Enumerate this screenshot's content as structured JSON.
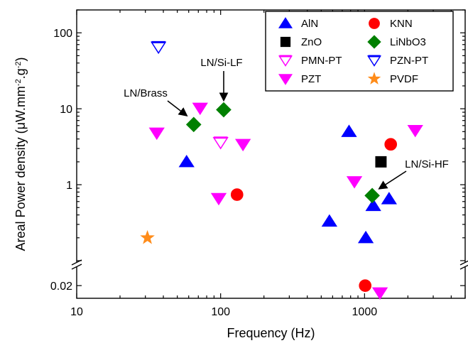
{
  "chart_data": {
    "type": "scatter",
    "xlabel": "Frequency (Hz)",
    "ylabel_prefix": "Areal Power density (μW.mm",
    "ylabel_sup1": "-2",
    "ylabel_mid": ".g",
    "ylabel_sup2": "-2",
    "ylabel_suffix": ")",
    "x_scale": "log",
    "y_scale": "log",
    "xlim": [
      10,
      5000
    ],
    "ylim": [
      0.02,
      200
    ],
    "y_axis_break": "between 0.02 and 0.1",
    "x_ticks": [
      10,
      100,
      1000
    ],
    "x_tick_labels": [
      "10",
      "100",
      "1000"
    ],
    "y_ticks": [
      0.02,
      1,
      10,
      100
    ],
    "y_tick_labels": [
      "0.02",
      "1",
      "10",
      "100"
    ],
    "legend_position": "top-right",
    "series": [
      {
        "name": "AlN",
        "marker": "triangle-up",
        "color": "#0000ff",
        "filled": true,
        "points": [
          [
            58,
            2.0
          ],
          [
            780,
            5.0
          ],
          [
            570,
            0.33
          ],
          [
            1020,
            0.2
          ],
          [
            1150,
            0.53
          ],
          [
            1480,
            0.65
          ]
        ]
      },
      {
        "name": "KNN",
        "marker": "circle",
        "color": "#ff0000",
        "filled": true,
        "points": [
          [
            130,
            0.74
          ],
          [
            1520,
            3.4
          ],
          [
            1010,
            0.02
          ]
        ]
      },
      {
        "name": "ZnO",
        "marker": "square",
        "color": "#000000",
        "filled": true,
        "points": [
          [
            1300,
            2.0
          ]
        ]
      },
      {
        "name": "LiNbO3",
        "marker": "diamond",
        "color": "#008000",
        "filled": true,
        "points": [
          [
            65,
            6.2
          ],
          [
            105,
            9.7
          ],
          [
            1130,
            0.72
          ]
        ]
      },
      {
        "name": "PMN-PT",
        "marker": "triangle-down",
        "color": "#ff00ff",
        "filled": "half",
        "points": [
          [
            100,
            3.6
          ]
        ]
      },
      {
        "name": "PZN-PT",
        "marker": "triangle-down",
        "color": "#0000ff",
        "filled": "half",
        "points": [
          [
            37,
            65
          ]
        ]
      },
      {
        "name": "PZT",
        "marker": "triangle-down",
        "color": "#ff00ff",
        "filled": true,
        "points": [
          [
            36,
            4.8
          ],
          [
            72,
            10.2
          ],
          [
            97,
            0.66
          ],
          [
            143,
            3.4
          ],
          [
            850,
            1.1
          ],
          [
            1280,
            0.017
          ],
          [
            2250,
            5.2
          ]
        ]
      },
      {
        "name": "PVDF",
        "marker": "star",
        "color": "#ff8c1a",
        "filled": true,
        "points": [
          [
            31,
            0.2
          ]
        ]
      }
    ],
    "annotations": [
      {
        "text": "LN/Si-LF",
        "target": [
          105,
          9.7
        ]
      },
      {
        "text": "LN/Brass",
        "target": [
          65,
          6.2
        ]
      },
      {
        "text": "LN/Si-HF",
        "target": [
          1130,
          0.72
        ]
      }
    ]
  }
}
